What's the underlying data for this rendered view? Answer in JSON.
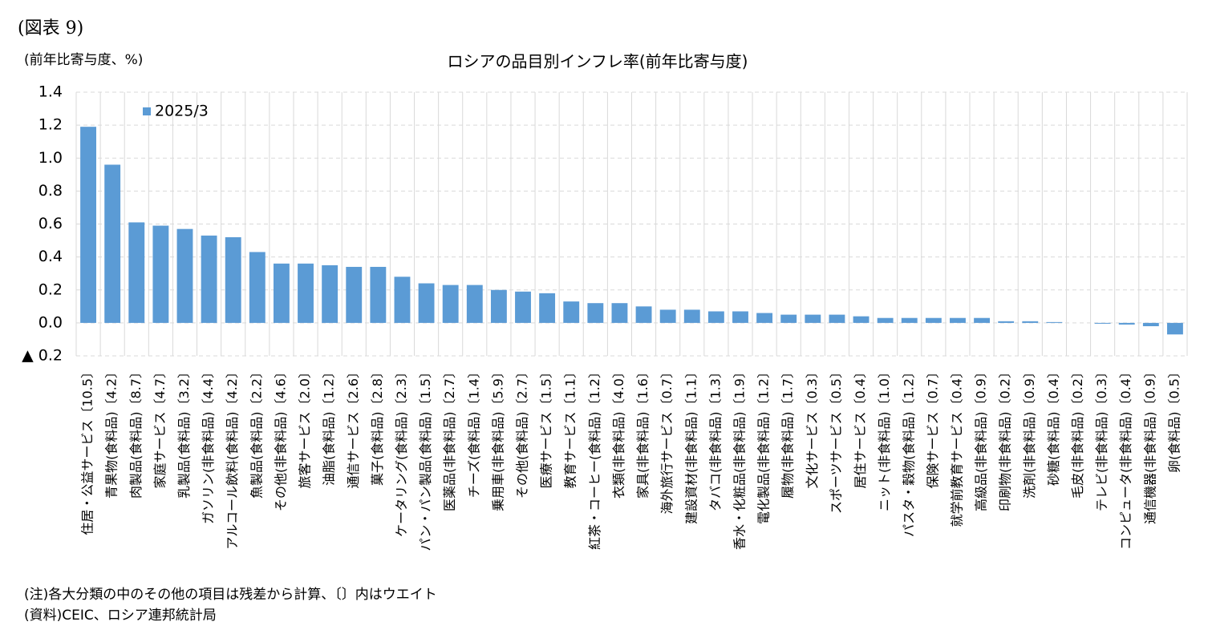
{
  "figure_label": "(図表 9)",
  "chart_data": {
    "type": "bar",
    "title": "ロシアの品目別インフレ率(前年比寄与度)",
    "y_label": "(前年比寄与度、%)",
    "categories": [
      "住居・公益サービス〔10.5〕",
      "青果物(食料品)〔4.2〕",
      "肉製品(食料品)〔8.7〕",
      "家庭サービス〔4.7〕",
      "乳製品(食料品)〔3.2〕",
      "ガソリン(非食料品)〔4.4〕",
      "アルコール飲料(食料品)〔4.2〕",
      "魚製品(食料品)〔2.2〕",
      "その他(非食料品)〔4.6〕",
      "旅客サービス〔2.0〕",
      "油脂(食料品)〔1.2〕",
      "通信サービス〔2.6〕",
      "菓子(食料品)〔2.8〕",
      "ケータリング(食料品)〔2.3〕",
      "パン・パン製品(食料品)〔1.5〕",
      "医薬品(非食料品)〔2.7〕",
      "チーズ(食料品)〔1.4〕",
      "乗用車(非食料品)〔5.9〕",
      "その他(食料品)〔2.7〕",
      "医療サービス〔1.5〕",
      "教育サービス〔1.1〕",
      "紅茶・コーヒー(食料品)〔1.2〕",
      "衣類(非食料品)〔4.0〕",
      "家具(非食料品)〔1.6〕",
      "海外旅行サービス〔0.7〕",
      "建設資材(非食料品)〔1.1〕",
      "タバコ(非食料品)〔1.3〕",
      "香水・化粧品(非食料品)〔1.9〕",
      "電化製品(非食料品)〔1.2〕",
      "履物(非食料品)〔1.7〕",
      "文化サービス〔0.3〕",
      "スポーツサービス〔0.5〕",
      "居住サービス〔0.4〕",
      "ニット(非食料品)〔1.0〕",
      "パスタ・穀物(食料品)〔1.2〕",
      "保険サービス〔0.7〕",
      "就学前教育サービス〔0.4〕",
      "高級品(非食料品)〔0.9〕",
      "印刷物(非食料品)〔0.2〕",
      "洗剤(非食料品)〔0.9〕",
      "砂糖(食料品)〔0.4〕",
      "毛皮(非食料品)〔0.2〕",
      "テレビ(非食料品)〔0.3〕",
      "コンピュータ(非食料品)〔0.4〕",
      "通信機器(非食料品)〔0.9〕",
      "卵(食料品)〔0.5〕"
    ],
    "series": [
      {
        "name": "2025/3",
        "color": "#5b9bd5",
        "values": [
          1.19,
          0.96,
          0.61,
          0.59,
          0.57,
          0.53,
          0.52,
          0.43,
          0.36,
          0.36,
          0.35,
          0.34,
          0.34,
          0.28,
          0.24,
          0.23,
          0.23,
          0.2,
          0.19,
          0.18,
          0.13,
          0.12,
          0.12,
          0.1,
          0.08,
          0.08,
          0.07,
          0.07,
          0.06,
          0.05,
          0.05,
          0.05,
          0.04,
          0.03,
          0.03,
          0.03,
          0.03,
          0.03,
          0.01,
          0.01,
          0.005,
          0.0,
          -0.005,
          -0.01,
          -0.02,
          -0.07
        ]
      }
    ],
    "ylim": [
      -0.2,
      1.4
    ],
    "yticks": [
      {
        "value": -0.2,
        "label": "▲ 0.2"
      },
      {
        "value": 0,
        "label": "0.0"
      },
      0.2,
      0.4,
      0.6,
      0.8,
      {
        "value": 1,
        "label": "1.0"
      },
      1.2,
      1.4
    ],
    "grid": true,
    "legend": "upper left"
  },
  "notes": [
    "(注)各大分類の中のその他の項目は残差から計算、〔〕内はウエイト",
    "(資料)CEIC、ロシア連邦統計局"
  ]
}
